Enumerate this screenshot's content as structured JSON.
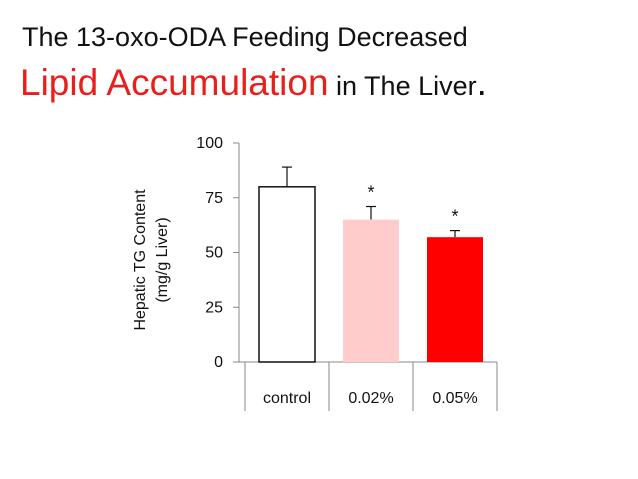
{
  "title": {
    "line1": "The 13-oxo-ODA Feeding Decreased",
    "accent": "Lipid Accumulation",
    "rest": " in The Liver",
    "end": "."
  },
  "chart_data": {
    "type": "bar",
    "categories": [
      "control",
      "0.02%",
      "0.05%"
    ],
    "values": [
      80,
      65,
      57
    ],
    "errors": [
      9,
      6,
      3
    ],
    "significance": [
      "",
      "*",
      "*"
    ],
    "colors": [
      "#ffffff",
      "#ffcccc",
      "#ff0000"
    ],
    "ylabel_lines": [
      "Hepatic TG Content",
      "(mg/g Liver)"
    ],
    "ylim": [
      0,
      100
    ],
    "yticks": [
      0,
      25,
      50,
      75,
      100
    ],
    "grid": false,
    "legend": "none"
  }
}
